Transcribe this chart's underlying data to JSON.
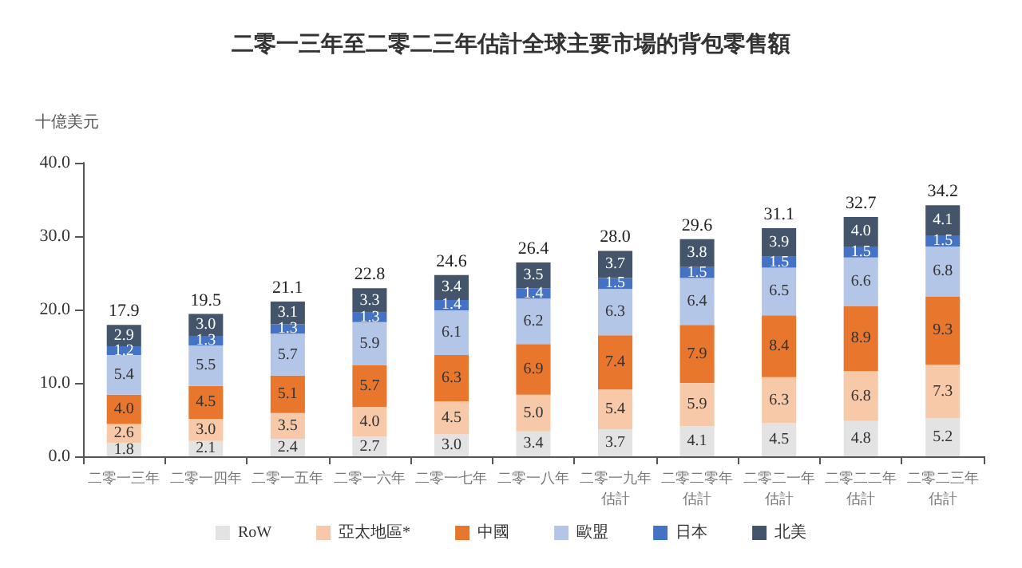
{
  "chart_data": {
    "type": "bar",
    "stacked": true,
    "title": "二零一三年至二零二三年估計全球主要市場的背包零售額",
    "ylabel": "十億美元",
    "categories": [
      "二零一三年",
      "二零一四年",
      "二零一五年",
      "二零一六年",
      "二零一七年",
      "二零一八年",
      "二零一九年估計",
      "二零二零年估計",
      "二零二一年估計",
      "二零二二年估計",
      "二零二三年估計"
    ],
    "series": [
      {
        "name": "RoW",
        "color": "#e3e3e3",
        "values": [
          1.8,
          2.1,
          2.4,
          2.7,
          3.0,
          3.4,
          3.7,
          4.1,
          4.5,
          4.8,
          5.2
        ],
        "value_labels": [
          "1.8",
          "2.1",
          "2.4",
          "2.7",
          "3.0",
          "3.4",
          "3.7",
          "4.1",
          "4.5",
          "4.8",
          "5.2"
        ]
      },
      {
        "name": "亞太地區*",
        "color": "#f7c9a8",
        "values": [
          2.6,
          3.0,
          3.5,
          4.0,
          4.5,
          5.0,
          5.4,
          5.9,
          6.3,
          6.8,
          7.3
        ],
        "value_labels": [
          "2.6",
          "3.0",
          "3.5",
          "4.0",
          "4.5",
          "5.0",
          "5.4",
          "5.9",
          "6.3",
          "6.8",
          "7.3"
        ]
      },
      {
        "name": "中國",
        "color": "#e8762d",
        "values": [
          4.0,
          4.5,
          5.1,
          5.7,
          6.3,
          6.9,
          7.4,
          7.9,
          8.4,
          8.9,
          9.3
        ],
        "value_labels": [
          "4.0",
          "4.5",
          "5.1",
          "5.7",
          "6.3",
          "6.9",
          "7.4",
          "7.9",
          "8.4",
          "8.9",
          "9.3"
        ]
      },
      {
        "name": "歐盟",
        "color": "#b4c6e7",
        "values": [
          5.4,
          5.5,
          5.7,
          5.9,
          6.1,
          6.2,
          6.3,
          6.4,
          6.5,
          6.6,
          6.8
        ],
        "value_labels": [
          "5.4",
          "5.5",
          "5.7",
          "5.9",
          "6.1",
          "6.2",
          "6.3",
          "6.4",
          "6.5",
          "6.6",
          "6.8"
        ]
      },
      {
        "name": "日本",
        "color": "#4472c4",
        "values": [
          1.2,
          1.3,
          1.3,
          1.3,
          1.4,
          1.4,
          1.5,
          1.5,
          1.5,
          1.5,
          1.5
        ],
        "value_labels": [
          "1.2",
          "1.3",
          "1.3",
          "1.3",
          "1.4",
          "1.4",
          "1.5",
          "1.5",
          "1.5",
          "1.5",
          "1.5"
        ]
      },
      {
        "name": "北美",
        "color": "#44546a",
        "values": [
          2.9,
          3.0,
          3.1,
          3.3,
          3.4,
          3.5,
          3.7,
          3.8,
          3.9,
          4.0,
          4.1
        ],
        "value_labels": [
          "2.9",
          "3.0",
          "3.1",
          "3.3",
          "3.4",
          "3.5",
          "3.7",
          "3.8",
          "3.9",
          "4.0",
          "4.1"
        ]
      }
    ],
    "totals": [
      "17.9",
      "19.5",
      "21.1",
      "22.8",
      "24.6",
      "26.4",
      "28.0",
      "29.6",
      "31.1",
      "32.7",
      "34.2"
    ],
    "ylim": [
      0,
      40
    ],
    "yticks": [
      {
        "value": 0,
        "label": "0.0"
      },
      {
        "value": 10,
        "label": "10.0"
      },
      {
        "value": 20,
        "label": "20.0"
      },
      {
        "value": 30,
        "label": "30.0"
      },
      {
        "value": 40,
        "label": "40.0"
      }
    ],
    "grid": false,
    "legend": "bottom"
  }
}
